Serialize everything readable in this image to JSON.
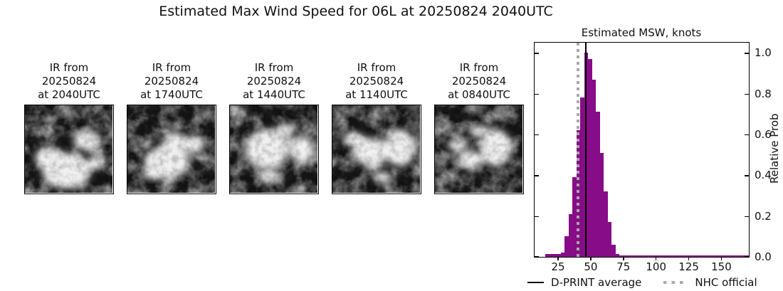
{
  "title": "Estimated Max Wind Speed for 06L at 20250824 2040UTC",
  "ir_panels": [
    {
      "label_lines": [
        "IR from",
        "20250824",
        "at 2040UTC"
      ]
    },
    {
      "label_lines": [
        "IR from",
        "20250824",
        "at 1740UTC"
      ]
    },
    {
      "label_lines": [
        "IR from",
        "20250824",
        "at 1440UTC"
      ]
    },
    {
      "label_lines": [
        "IR from",
        "20250824",
        "at 1140UTC"
      ]
    },
    {
      "label_lines": [
        "IR from",
        "20250824",
        "at 0840UTC"
      ]
    }
  ],
  "chart_data": {
    "type": "bar",
    "title": "Estimated MSW, knots",
    "ylabel": "Relative Prob",
    "xlabel": "",
    "xlim": [
      7,
      171
    ],
    "ylim": [
      0,
      1.05
    ],
    "xticks": [
      25,
      50,
      75,
      100,
      125,
      150
    ],
    "yticks": [
      0.0,
      0.2,
      0.4,
      0.6,
      0.8,
      1.0
    ],
    "grid": false,
    "bar_color": "#870c87",
    "bins": [
      {
        "from": 15,
        "to": 18,
        "h": 0.015
      },
      {
        "from": 18,
        "to": 21,
        "h": 0.015
      },
      {
        "from": 21,
        "to": 24,
        "h": 0.015
      },
      {
        "from": 24,
        "to": 27,
        "h": 0.015
      },
      {
        "from": 27,
        "to": 30,
        "h": 0.02
      },
      {
        "from": 30,
        "to": 33,
        "h": 0.1
      },
      {
        "from": 33,
        "to": 36,
        "h": 0.21
      },
      {
        "from": 36,
        "to": 39,
        "h": 0.39
      },
      {
        "from": 39,
        "to": 42,
        "h": 0.62
      },
      {
        "from": 42,
        "to": 45,
        "h": 0.78
      },
      {
        "from": 45,
        "to": 48,
        "h": 1.0
      },
      {
        "from": 48,
        "to": 51,
        "h": 0.97
      },
      {
        "from": 51,
        "to": 54,
        "h": 0.87
      },
      {
        "from": 54,
        "to": 57,
        "h": 0.71
      },
      {
        "from": 57,
        "to": 60,
        "h": 0.51
      },
      {
        "from": 60,
        "to": 63,
        "h": 0.32
      },
      {
        "from": 63,
        "to": 66,
        "h": 0.17
      },
      {
        "from": 66,
        "to": 69,
        "h": 0.06
      },
      {
        "from": 69,
        "to": 72,
        "h": 0.015
      },
      {
        "from": 72,
        "to": 171,
        "h": 0.008
      }
    ],
    "vlines": [
      {
        "label": "D-PRINT average",
        "value": 46.2,
        "style": "solid",
        "color": "#000000"
      },
      {
        "label": "NHC official",
        "value": 40,
        "style": "dotted",
        "color": "#a9a9a9"
      }
    ],
    "legend": [
      {
        "label": "D-PRINT average",
        "marker": "solid-line",
        "color": "#000000"
      },
      {
        "label": "NHC official",
        "marker": "dotted-line",
        "color": "#a9a9a9"
      }
    ],
    "legend_position": "bottom"
  }
}
